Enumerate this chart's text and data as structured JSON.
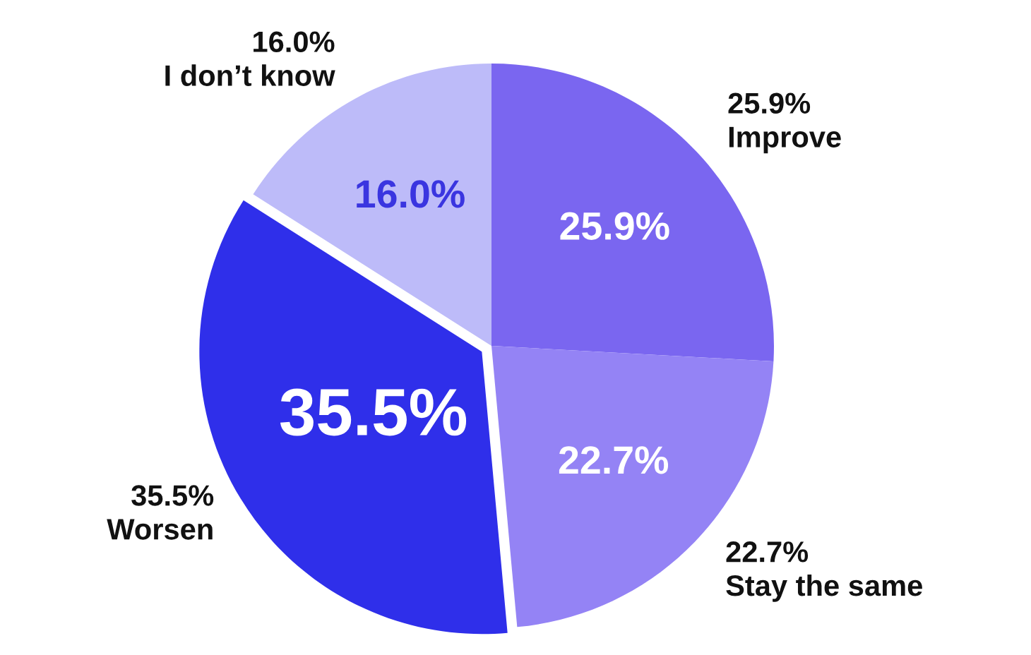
{
  "chart_data": {
    "type": "pie",
    "categories": [
      "Improve",
      "Stay the same",
      "Worsen",
      "I don’t know"
    ],
    "values": [
      25.9,
      22.7,
      35.5,
      16.0
    ],
    "colors": [
      "#7a66f0",
      "#9483f5",
      "#2f2fea",
      "#bdbbf9"
    ],
    "value_labels": [
      "25.9%",
      "22.7%",
      "35.5%",
      "16.0%"
    ]
  }
}
